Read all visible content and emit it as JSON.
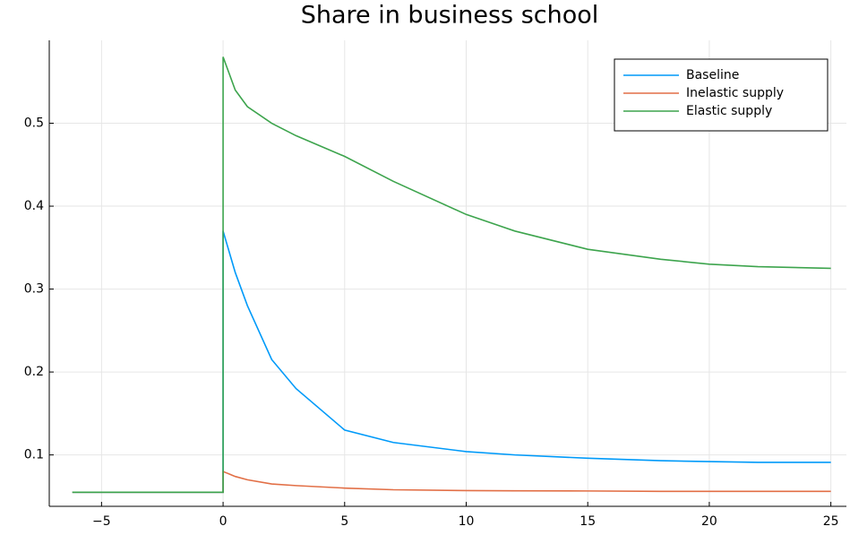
{
  "chart_data": {
    "type": "line",
    "title": "Share in business school",
    "x": [
      -6.2,
      0,
      0,
      0.5,
      1,
      2,
      3,
      5,
      7,
      10,
      12,
      15,
      18,
      20,
      22,
      25
    ],
    "series": [
      {
        "name": "Baseline",
        "color": "#009af9",
        "values": [
          0.055,
          0.055,
          0.37,
          0.32,
          0.28,
          0.215,
          0.18,
          0.13,
          0.115,
          0.104,
          0.1,
          0.096,
          0.093,
          0.092,
          0.091,
          0.091
        ]
      },
      {
        "name": "Inelastic supply",
        "color": "#e26f46",
        "values": [
          0.055,
          0.055,
          0.08,
          0.074,
          0.07,
          0.065,
          0.063,
          0.06,
          0.058,
          0.057,
          0.0567,
          0.0565,
          0.056,
          0.056,
          0.056,
          0.056
        ]
      },
      {
        "name": "Elastic supply",
        "color": "#3da44d",
        "values": [
          0.055,
          0.055,
          0.58,
          0.54,
          0.52,
          0.5,
          0.485,
          0.46,
          0.43,
          0.39,
          0.37,
          0.348,
          0.336,
          0.33,
          0.327,
          0.325
        ]
      }
    ],
    "xlim": [
      -7.15,
      25.64
    ],
    "ylim": [
      0.038,
      0.6
    ],
    "xticks": [
      {
        "value": -5,
        "label": "−5"
      },
      0,
      5,
      10,
      15,
      20,
      25
    ],
    "yticks": [
      0.1,
      0.2,
      0.3,
      0.4,
      0.5
    ],
    "grid": true,
    "legend": "top-right"
  }
}
